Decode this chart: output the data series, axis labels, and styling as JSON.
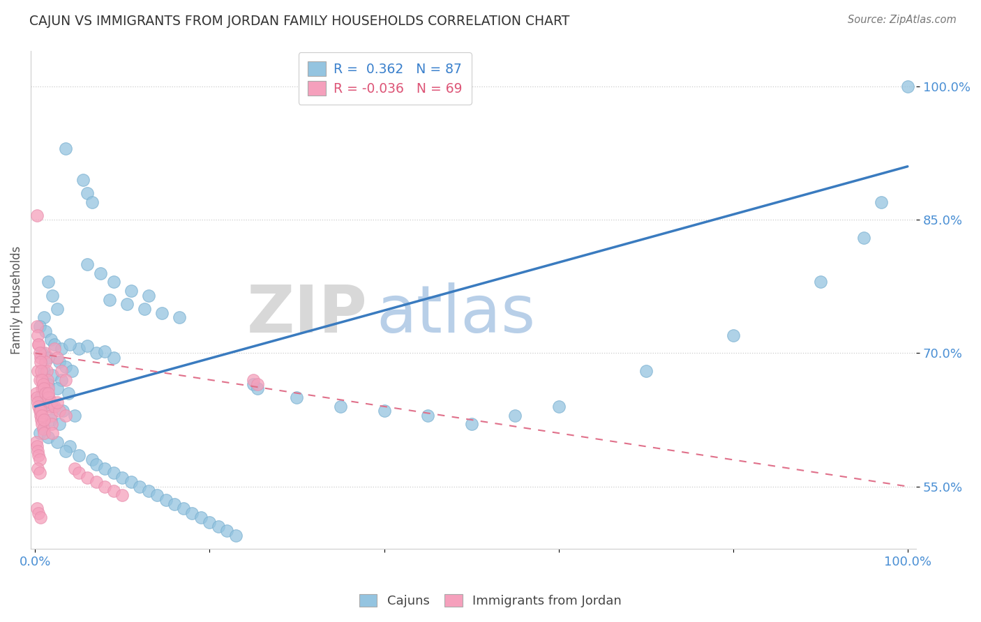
{
  "title": "CAJUN VS IMMIGRANTS FROM JORDAN FAMILY HOUSEHOLDS CORRELATION CHART",
  "source": "Source: ZipAtlas.com",
  "ylabel": "Family Households",
  "xlim": [
    -0.5,
    101.0
  ],
  "ylim": [
    48.0,
    104.0
  ],
  "yticks": [
    55.0,
    70.0,
    85.0,
    100.0
  ],
  "ytick_labels": [
    "55.0%",
    "70.0%",
    "85.0%",
    "100.0%"
  ],
  "xtick_vals": [
    0,
    20,
    40,
    60,
    80,
    100
  ],
  "xtick_labels": [
    "0.0%",
    "",
    "",
    "",
    "",
    "100.0%"
  ],
  "blue_R": 0.362,
  "blue_N": 87,
  "pink_R": -0.036,
  "pink_N": 69,
  "blue_color": "#94c4e0",
  "pink_color": "#f5a0bc",
  "trend_blue_color": "#3a7bbf",
  "trend_pink_color": "#e0708a",
  "background": "#ffffff",
  "grid_color": "#cccccc",
  "watermark_zip": "ZIP",
  "watermark_atlas": "atlas",
  "blue_trend_x": [
    0,
    100
  ],
  "blue_trend_y": [
    64.0,
    91.0
  ],
  "pink_trend_x": [
    0,
    100
  ],
  "pink_trend_y": [
    70.0,
    55.0
  ],
  "blue_x": [
    3.5,
    5.5,
    6.0,
    6.5,
    1.5,
    2.0,
    2.5,
    1.0,
    0.5,
    1.2,
    1.8,
    2.2,
    3.0,
    0.8,
    1.5,
    2.8,
    3.5,
    4.2,
    1.0,
    2.0,
    3.0,
    1.5,
    2.5,
    3.8,
    0.6,
    1.2,
    2.0,
    3.2,
    4.5,
    1.8,
    2.8,
    1.0,
    0.5,
    1.5,
    2.5,
    4.0,
    3.5,
    5.0,
    6.5,
    7.0,
    8.0,
    9.0,
    10.0,
    11.0,
    12.0,
    13.0,
    14.0,
    15.0,
    16.0,
    17.0,
    18.0,
    19.0,
    20.0,
    21.0,
    22.0,
    23.0,
    8.5,
    10.5,
    12.5,
    14.5,
    16.5,
    6.0,
    7.5,
    9.0,
    11.0,
    13.0,
    25.0,
    25.5,
    30.0,
    35.0,
    40.0,
    45.0,
    50.0,
    55.0,
    60.0,
    70.0,
    80.0,
    90.0,
    95.0,
    97.0,
    100.0,
    5.0,
    7.0,
    9.0,
    4.0,
    6.0,
    8.0
  ],
  "blue_y": [
    93.0,
    89.5,
    88.0,
    87.0,
    78.0,
    76.5,
    75.0,
    74.0,
    73.0,
    72.5,
    71.5,
    71.0,
    70.5,
    70.0,
    69.5,
    69.0,
    68.5,
    68.0,
    68.0,
    67.5,
    67.0,
    66.5,
    66.0,
    65.5,
    65.0,
    64.5,
    64.0,
    63.5,
    63.0,
    62.5,
    62.0,
    61.5,
    61.0,
    60.5,
    60.0,
    59.5,
    59.0,
    58.5,
    58.0,
    57.5,
    57.0,
    56.5,
    56.0,
    55.5,
    55.0,
    54.5,
    54.0,
    53.5,
    53.0,
    52.5,
    52.0,
    51.5,
    51.0,
    50.5,
    50.0,
    49.5,
    76.0,
    75.5,
    75.0,
    74.5,
    74.0,
    80.0,
    79.0,
    78.0,
    77.0,
    76.5,
    66.5,
    66.0,
    65.0,
    64.0,
    63.5,
    63.0,
    62.0,
    63.0,
    64.0,
    68.0,
    72.0,
    78.0,
    83.0,
    87.0,
    100.0,
    70.5,
    70.0,
    69.5,
    71.0,
    70.8,
    70.2
  ],
  "pink_x": [
    0.2,
    0.4,
    0.6,
    0.3,
    0.5,
    0.8,
    0.1,
    0.2,
    0.3,
    0.4,
    0.5,
    0.6,
    0.7,
    0.8,
    0.9,
    1.0,
    1.1,
    1.2,
    1.3,
    1.4,
    1.5,
    1.6,
    1.7,
    1.8,
    1.9,
    2.0,
    2.2,
    2.5,
    3.0,
    3.5,
    0.2,
    0.3,
    0.4,
    0.5,
    0.6,
    0.7,
    0.8,
    0.9,
    1.0,
    1.2,
    1.5,
    1.8,
    2.2,
    2.8,
    3.5,
    0.1,
    0.2,
    0.3,
    0.4,
    0.5,
    4.5,
    5.0,
    6.0,
    7.0,
    8.0,
    9.0,
    10.0,
    0.6,
    0.8,
    1.0,
    25.0,
    25.5,
    0.3,
    0.5,
    1.5,
    2.5,
    0.2,
    0.4,
    0.6
  ],
  "pink_y": [
    85.5,
    71.0,
    69.5,
    68.0,
    67.0,
    66.0,
    65.5,
    65.0,
    64.5,
    64.0,
    63.5,
    63.0,
    62.5,
    62.0,
    61.5,
    61.0,
    70.0,
    69.0,
    68.0,
    67.0,
    66.0,
    65.0,
    64.0,
    63.0,
    62.0,
    61.0,
    70.5,
    69.5,
    68.0,
    67.0,
    73.0,
    72.0,
    71.0,
    70.0,
    69.0,
    68.0,
    67.0,
    66.5,
    66.0,
    65.5,
    65.0,
    64.5,
    64.0,
    63.5,
    63.0,
    60.0,
    59.5,
    59.0,
    58.5,
    58.0,
    57.0,
    56.5,
    56.0,
    55.5,
    55.0,
    54.5,
    54.0,
    63.5,
    63.0,
    62.5,
    67.0,
    66.5,
    57.0,
    56.5,
    65.5,
    64.5,
    52.5,
    52.0,
    51.5
  ]
}
